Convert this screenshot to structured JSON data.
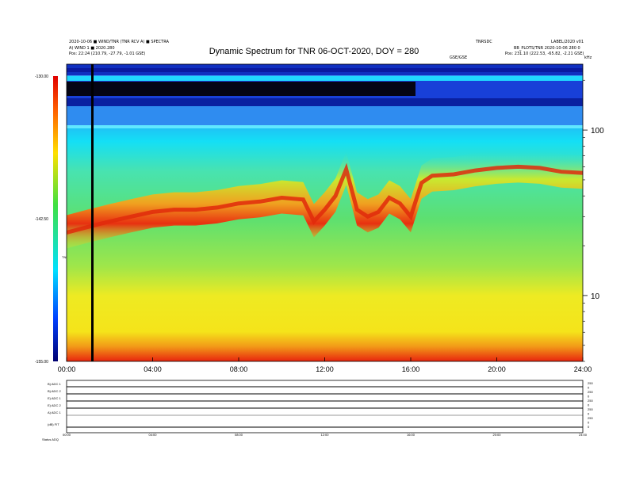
{
  "header": {
    "title": "Dynamic Spectrum for TNR 06-OCT-2020, DOY = 280",
    "top_left_1": "2020-10-06 ■ WIND/TNR (TNR RCV A) ■ SPECTRA",
    "top_left_2": "A) WIND 1 ■ 2020.280",
    "top_left_3": "Pos: 22:24 (210.79, -27.79, -1.01 GSE)",
    "top_right_code": "TNRSDC",
    "top_right_ver": "LABEL/2020 v01",
    "top_right_2": "BB_PLOTS/TNR 2020-10-06 280 0",
    "top_right_3": "Pos: 231.10 (222.53, -65.82, -2.21 GSE)",
    "top_right_small": "GSE/GSE",
    "corner_unit": "kHz"
  },
  "chart_data": {
    "type": "heatmap",
    "title": "Dynamic Spectrum for TNR 06-OCT-2020, DOY = 280",
    "x_ticks": [
      "00:00",
      "04:00",
      "08:00",
      "12:00",
      "16:00",
      "20:00",
      "24:00"
    ],
    "x_range_hours": [
      0,
      24
    ],
    "y_scale": "log",
    "y_range_khz": [
      4,
      250
    ],
    "y_ticks_right": [
      "100",
      "10"
    ],
    "y_tick_values": [
      100,
      10
    ],
    "colorbar": {
      "ticks": [
        "-130.00",
        "-142.50",
        "-155.00"
      ],
      "range_db": [
        -155,
        -130
      ],
      "label": "TNR"
    },
    "plasma_line_khz": {
      "hours": [
        0,
        1,
        2,
        3,
        4,
        5,
        6,
        7,
        8,
        9,
        10,
        11,
        11.5,
        12,
        12.5,
        13,
        13.5,
        14,
        14.5,
        15,
        15.5,
        16,
        16.5,
        17,
        18,
        19,
        20,
        21,
        22,
        23,
        24
      ],
      "values": [
        24,
        26,
        28,
        30,
        32,
        33,
        33,
        34,
        36,
        37,
        39,
        38,
        28,
        33,
        40,
        58,
        33,
        30,
        32,
        39,
        36,
        30,
        48,
        53,
        54,
        57,
        59,
        60,
        59,
        56,
        55
      ]
    },
    "data_gap_hours": 1.2
  },
  "bottom_panel": {
    "rows": [
      "B) ADC 1",
      "B) ADC 2",
      "E) ADC 1",
      "E) ADC 2",
      "A) ADC 1",
      "(dB) FIT"
    ],
    "right_labels": [
      "250",
      "0",
      "250",
      "0",
      "250",
      "0",
      "250",
      "0",
      "250",
      "0",
      "0"
    ],
    "x_ticks": [
      "00:00",
      "04:00",
      "08:00",
      "12:00",
      "16:00",
      "20:00",
      "24:00"
    ],
    "footer": "Status  ADQ"
  },
  "colors": {
    "dark_blue": "#00008b",
    "blue": "#0050ff",
    "cyan": "#00e6ff",
    "green": "#55e070",
    "yellow": "#f0ec20",
    "red": "#e83010"
  }
}
